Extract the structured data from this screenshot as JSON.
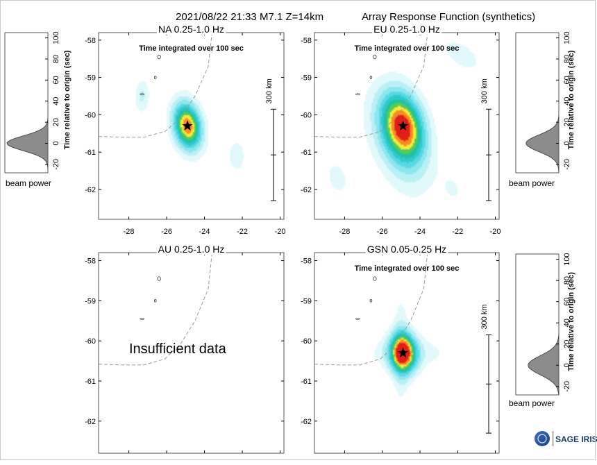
{
  "header": {
    "event": "2021/08/22 21:33  M7.1  Z=14km",
    "title": "Array Response Function (synthetics)"
  },
  "common": {
    "integration_note": "Time integrated over 100 sec",
    "scale_label": "300 km",
    "beam_power_label": "beam power",
    "time_axis_label": "Time relative to origin (sec)",
    "insufficient": "Insufficient data",
    "logo_text": "SAGE IRIS"
  },
  "colors": {
    "beam_fill": "#8c8c8c",
    "coast": "#9a9a9a",
    "star": "#000000",
    "frame": "#555555"
  },
  "chart_data": [
    {
      "type": "heatmap",
      "title": "NA  0.25-1.0 Hz",
      "x_ticks": [
        -28,
        -26,
        -24,
        -22,
        -20
      ],
      "y_ticks": [
        -58,
        -59,
        -60,
        -61,
        -62
      ],
      "xlim": [
        -29.6,
        -19.8
      ],
      "ylim": [
        -62.8,
        -57.8
      ],
      "epicenter": {
        "lon": -24.9,
        "lat": -60.3
      },
      "has_data": true,
      "blobs": [
        {
          "lon": -24.9,
          "lat": -60.3,
          "sx": 0.55,
          "sy": 0.42,
          "rot": -25,
          "amp": 1.0
        },
        {
          "lon": -27.3,
          "lat": -59.5,
          "sx": 0.28,
          "sy": 0.33,
          "rot": -20,
          "amp": 0.22
        },
        {
          "lon": -22.3,
          "lat": -61.1,
          "sx": 0.3,
          "sy": 0.3,
          "rot": -20,
          "amp": 0.2
        }
      ]
    },
    {
      "type": "heatmap",
      "title": "EU  0.25-1.0 Hz",
      "x_ticks": [
        -28,
        -26,
        -24,
        -22,
        -20
      ],
      "y_ticks": [
        -58,
        -59,
        -60,
        -61,
        -62
      ],
      "xlim": [
        -29.6,
        -19.8
      ],
      "ylim": [
        -62.8,
        -57.8
      ],
      "epicenter": {
        "lon": -24.9,
        "lat": -60.3
      },
      "has_data": true,
      "blobs": [
        {
          "lon": -24.9,
          "lat": -60.3,
          "sx": 0.85,
          "sy": 0.6,
          "rot": -25,
          "amp": 1.0
        },
        {
          "lon": -25.2,
          "lat": -60.9,
          "sx": 1.4,
          "sy": 0.75,
          "rot": -35,
          "amp": 0.2
        },
        {
          "lon": -21.8,
          "lat": -58.4,
          "sx": 0.9,
          "sy": 0.3,
          "rot": -15,
          "amp": 0.15
        },
        {
          "lon": -28.4,
          "lat": -61.7,
          "sx": 0.7,
          "sy": 0.5,
          "rot": -20,
          "amp": 0.12
        },
        {
          "lon": -22.2,
          "lat": -62.0,
          "sx": 0.6,
          "sy": 0.4,
          "rot": -20,
          "amp": 0.1
        }
      ]
    },
    {
      "type": "heatmap",
      "title": "AU  0.25-1.0 Hz",
      "x_ticks": [
        -28,
        -26,
        -24,
        -22,
        -20
      ],
      "y_ticks": [
        -58,
        -59,
        -60,
        -61,
        -62
      ],
      "xlim": [
        -29.6,
        -19.8
      ],
      "ylim": [
        -62.8,
        -57.8
      ],
      "has_data": false,
      "blobs": []
    },
    {
      "type": "heatmap",
      "title": "GSN  0.05-0.25 Hz",
      "x_ticks": [
        -28,
        -26,
        -24,
        -22,
        -20
      ],
      "y_ticks": [
        -58,
        -59,
        -60,
        -61,
        -62
      ],
      "xlim": [
        -29.6,
        -19.8
      ],
      "ylim": [
        -62.8,
        -57.8
      ],
      "epicenter": {
        "lon": -24.9,
        "lat": -60.3
      },
      "has_data": true,
      "blobs": [
        {
          "lon": -24.9,
          "lat": -60.3,
          "sx": 0.5,
          "sy": 0.36,
          "rot": -5,
          "amp": 1.0
        },
        {
          "lon": -24.6,
          "lat": -60.3,
          "sx": 1.7,
          "sy": 0.28,
          "rot": 0,
          "amp": 0.16
        },
        {
          "lon": -25.0,
          "lat": -60.2,
          "sx": 0.3,
          "sy": 1.3,
          "rot": 0,
          "amp": 0.14
        }
      ]
    },
    {
      "type": "area",
      "title": "",
      "xlabel": "beam power",
      "ylabel": "Time relative to origin (sec)",
      "y_ticks": [
        -20,
        0,
        20,
        40,
        60,
        80,
        100
      ],
      "ylim": [
        -28,
        105
      ],
      "series": [
        {
          "peak_time": 0,
          "width": 7,
          "peak_power": 1.0
        }
      ]
    },
    {
      "type": "area",
      "title": "",
      "xlabel": "beam power",
      "ylabel": "Time relative to origin (sec)",
      "y_ticks": [
        -20,
        0,
        20,
        40,
        60,
        80,
        100
      ],
      "ylim": [
        -28,
        105
      ],
      "series": [
        {
          "peak_time": 0,
          "width": 8,
          "peak_power": 0.8
        }
      ]
    },
    {
      "type": "area",
      "title": "",
      "xlabel": "beam power",
      "ylabel": "Time relative to origin (sec)",
      "y_ticks": [
        -20,
        0,
        20,
        40,
        60,
        80,
        100
      ],
      "ylim": [
        -28,
        105
      ],
      "series": [
        {
          "peak_time": 0,
          "width": 9,
          "peak_power": 0.75
        }
      ]
    }
  ]
}
